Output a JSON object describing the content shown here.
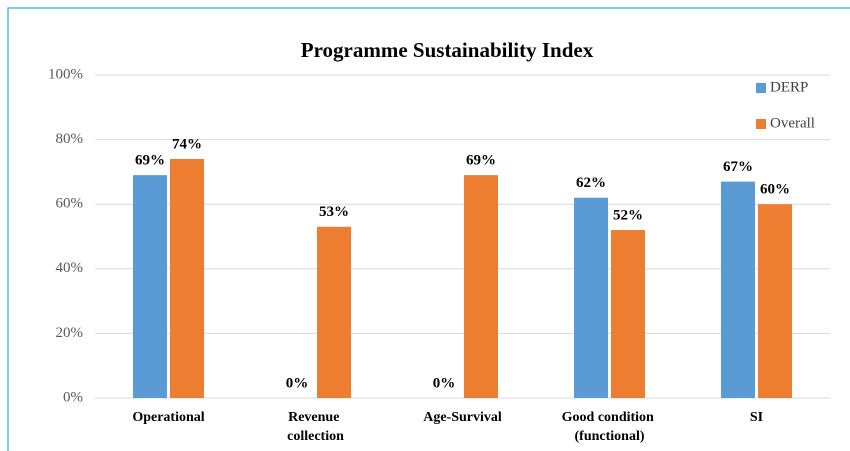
{
  "chart_data": {
    "type": "bar",
    "title": "Programme Sustainability Index",
    "categories": [
      "Operational",
      "Revenue collection",
      "Age-Survival",
      "Good condition (functional)",
      "SI"
    ],
    "series": [
      {
        "name": "DERP",
        "color": "#5b9bd5",
        "values": [
          69,
          0,
          0,
          62,
          67
        ],
        "value_labels": [
          "69%",
          "0%",
          "0%",
          "62%",
          "67%"
        ]
      },
      {
        "name": "Overall",
        "color": "#ed7d31",
        "values": [
          74,
          53,
          69,
          52,
          60
        ],
        "value_labels": [
          "74%",
          "53%",
          "69%",
          "52%",
          "60%"
        ]
      }
    ],
    "ylim": [
      0,
      100
    ],
    "yticks": [
      {
        "value": 0,
        "label": "0%"
      },
      {
        "value": 20,
        "label": "20%"
      },
      {
        "value": 40,
        "label": "40%"
      },
      {
        "value": 60,
        "label": "60%"
      },
      {
        "value": 80,
        "label": "80%"
      },
      {
        "value": 100,
        "label": "100%"
      }
    ],
    "grid": true,
    "legend": "top-right"
  }
}
